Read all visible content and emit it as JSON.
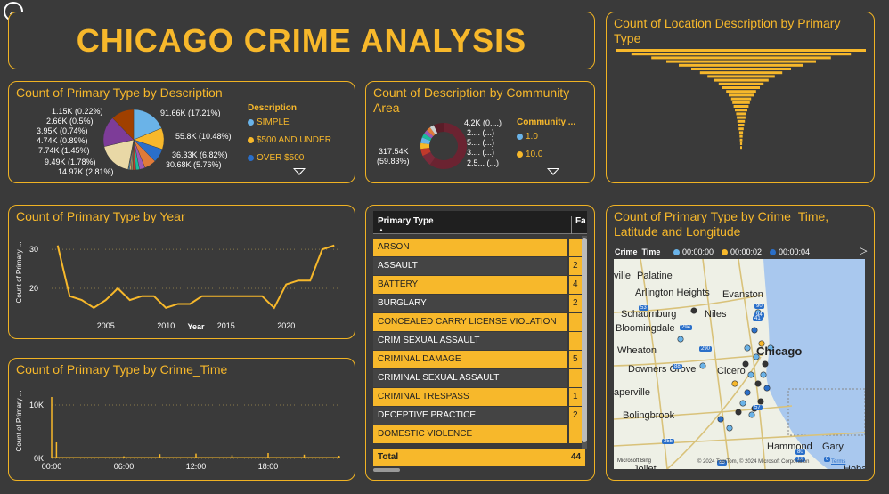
{
  "dashboard": {
    "title": "CHICAGO CRIME ANALYSIS",
    "back_icon": "arrow-left-icon"
  },
  "tiles": {
    "location_funnel": {
      "title": "Count of Location Description by Primary Type"
    },
    "primary_by_description": {
      "title": "Count of Primary Type by Description",
      "labels_left": [
        "1.15K (0.22%)",
        "2.66K (0.5%)",
        "3.95K (0.74%)",
        "4.74K (0.89%)",
        "7.74K (1.45%)",
        "9.49K (1.78%)",
        "14.97K (2.81%)"
      ],
      "labels_right": [
        "91.66K (17.21%)",
        "55.8K (10.48%)",
        "36.33K (6.82%)",
        "30.68K (5.76%)"
      ],
      "legend_title": "Description",
      "legend": [
        {
          "label": "SIMPLE",
          "color": "#6ab3e8"
        },
        {
          "label": "$500 AND UNDER",
          "color": "#f7b82b"
        },
        {
          "label": "OVER $500",
          "color": "#2a6fc9"
        }
      ]
    },
    "description_by_area": {
      "title": "Count of Description by Community Area",
      "labels_right": [
        "4.2K (0....)",
        "2.... (...)",
        "5.... (...)",
        "3.... (...)",
        "2.5... (...)"
      ],
      "label_left_value": "317.54K",
      "label_left_pct": "(59.83%)",
      "legend_title": "Community ...",
      "legend": [
        {
          "label": "1.0",
          "color": "#6ab3e8"
        },
        {
          "label": "10.0",
          "color": "#f7b82b"
        }
      ]
    },
    "primary_by_year": {
      "title": "Count of Primary Type by Year",
      "ylabel": "Count of Primary ...",
      "xlabel": "Year"
    },
    "primary_by_crime_time": {
      "title": "Count of Primary Type by Crime_Time",
      "ylabel": "Count of Primary ..."
    },
    "table": {
      "col1": "Primary Type",
      "col2": "Fa",
      "rows": [
        {
          "name": "ARSON",
          "val": ""
        },
        {
          "name": "ASSAULT",
          "val": "2"
        },
        {
          "name": "BATTERY",
          "val": "4"
        },
        {
          "name": "BURGLARY",
          "val": "2"
        },
        {
          "name": "CONCEALED CARRY LICENSE VIOLATION",
          "val": ""
        },
        {
          "name": "CRIM SEXUAL ASSAULT",
          "val": ""
        },
        {
          "name": "CRIMINAL DAMAGE",
          "val": "5"
        },
        {
          "name": "CRIMINAL SEXUAL ASSAULT",
          "val": ""
        },
        {
          "name": "CRIMINAL TRESPASS",
          "val": "1"
        },
        {
          "name": "DECEPTIVE PRACTICE",
          "val": "2"
        },
        {
          "name": "DOMESTIC VIOLENCE",
          "val": ""
        }
      ],
      "total_label": "Total",
      "total_val": "44"
    },
    "map": {
      "title": "Count of Primary Type by Crime_Time, Latitude and Longitude",
      "legend_title": "Crime_Time",
      "legend": [
        {
          "label": "00:00:00",
          "color": "#6ab3e8"
        },
        {
          "label": "00:00:02",
          "color": "#f7b82b"
        },
        {
          "label": "00:00:04",
          "color": "#2a6fc9"
        }
      ],
      "places": [
        "ville",
        "Palatine",
        "Arlington Heights",
        "Evanston",
        "Schaumburg",
        "Niles",
        "Bloomingdale",
        "Wheaton",
        "Chicago",
        "Downers Grove",
        "Cicero",
        "aperville",
        "Bolingbrook",
        "Hammond",
        "Gary",
        "Joliet",
        "Hobar"
      ],
      "roads": [
        "53",
        "294",
        "90",
        "94",
        "290",
        "88",
        "355",
        "57",
        "80",
        "65",
        "41",
        "12",
        "6"
      ],
      "attribution": "© 2024 TomTom, © 2024 Microsoft Corporation",
      "terms": "Terms",
      "brand": "Microsoft Bing"
    }
  },
  "chart_data": [
    {
      "type": "line",
      "title": "Count of Primary Type by Year",
      "xlabel": "Year",
      "ylabel": "Count of Primary ...",
      "x": [
        2001,
        2002,
        2003,
        2004,
        2005,
        2006,
        2007,
        2008,
        2009,
        2010,
        2011,
        2012,
        2013,
        2014,
        2015,
        2016,
        2017,
        2018,
        2019,
        2020,
        2021,
        2022,
        2023,
        2024
      ],
      "values": [
        31,
        18,
        17,
        15,
        17,
        20,
        17,
        18,
        18,
        15,
        16,
        16,
        18,
        18,
        18,
        18,
        18,
        18,
        15,
        21,
        22,
        22,
        30,
        31
      ],
      "xticks": [
        2005,
        2010,
        2015,
        2020
      ],
      "yticks": [
        20,
        30
      ],
      "xlim": [
        2000.5,
        2024.5
      ],
      "ylim": [
        12,
        33
      ],
      "color": "#f7b82b"
    },
    {
      "type": "line",
      "title": "Count of Primary Type by Crime_Time",
      "ylabel": "Count of Primary ...",
      "xticks": [
        "00:00",
        "06:00",
        "12:00",
        "18:00"
      ],
      "yticks": [
        "0K",
        "10K"
      ],
      "ylim": [
        0,
        12000
      ],
      "spikes": [
        {
          "t": 0.0,
          "v": 11500
        },
        {
          "t": 0.4,
          "v": 3000
        },
        {
          "t": 6.0,
          "v": 400
        },
        {
          "t": 9.0,
          "v": 800
        },
        {
          "t": 12.0,
          "v": 900
        },
        {
          "t": 15.0,
          "v": 600
        },
        {
          "t": 18.0,
          "v": 1000
        },
        {
          "t": 21.0,
          "v": 700
        },
        {
          "t": 23.9,
          "v": 500
        }
      ],
      "baseline": 120,
      "color": "#f7b82b"
    },
    {
      "type": "pie",
      "title": "Count of Primary Type by Description",
      "values": [
        91660,
        55800,
        36330,
        30680,
        14970,
        9490,
        7740,
        4740,
        3950,
        2660,
        1150
      ],
      "labels": [
        "91.66K (17.21%)",
        "55.8K (10.48%)",
        "36.33K (6.82%)",
        "30.68K (5.76%)",
        "14.97K (2.81%)",
        "9.49K (1.78%)",
        "7.74K (1.45%)",
        "4.74K (0.89%)",
        "3.95K (0.74%)",
        "2.66K (0.5%)",
        "1.15K (0.22%)"
      ]
    },
    {
      "type": "bar",
      "title": "Count of Location Description by Primary Type",
      "orientation": "funnel",
      "values": [
        100,
        88,
        72,
        60,
        50,
        40,
        33,
        27,
        22,
        18,
        15,
        12,
        10,
        8,
        7,
        6,
        5,
        4,
        3.5,
        3,
        2.5,
        2,
        1.5,
        1.2,
        1,
        0.8,
        0.6
      ]
    }
  ]
}
